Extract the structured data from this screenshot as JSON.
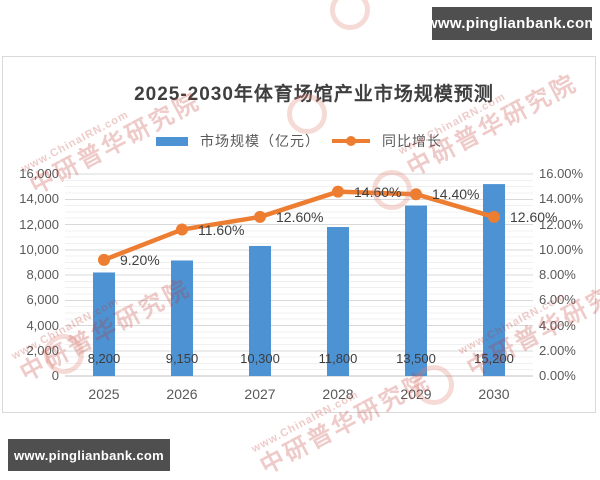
{
  "page": {
    "top_badge": "www.pinglianbank.com",
    "bottom_badge": "www.pinglianbank.com"
  },
  "watermark": {
    "url_text": "www.ChinaIRN.com",
    "stamp_text": "中研普华研究院"
  },
  "chart_data": {
    "type": "combo",
    "title": "2025-2030年体育场馆产业市场规模预测",
    "categories": [
      "2025",
      "2026",
      "2027",
      "2028",
      "2029",
      "2030"
    ],
    "series": [
      {
        "name": "市场规模（亿元）",
        "type": "bar",
        "axis": "left",
        "color": "#4D92D3",
        "values": [
          8200,
          9150,
          10300,
          11800,
          13500,
          15200
        ],
        "labels": [
          "8,200",
          "9,150",
          "10,300",
          "11,800",
          "13,500",
          "15,200"
        ]
      },
      {
        "name": "同比增长",
        "type": "line",
        "axis": "right",
        "color": "#ED7D31",
        "values": [
          9.2,
          11.6,
          12.6,
          14.6,
          14.4,
          12.6
        ],
        "labels": [
          "9.20%",
          "11.60%",
          "12.60%",
          "14.60%",
          "14.40%",
          "12.60%"
        ]
      }
    ],
    "left_axis": {
      "min": 0,
      "max": 16000,
      "major_step": 2000,
      "minor_step": 500,
      "tick_labels": [
        "0",
        "2,000",
        "4,000",
        "6,000",
        "8,000",
        "10,000",
        "12,000",
        "14,000",
        "16,000"
      ]
    },
    "right_axis": {
      "min": 0,
      "max": 16,
      "major_step": 2,
      "tick_labels": [
        "0.00%",
        "2.00%",
        "4.00%",
        "6.00%",
        "8.00%",
        "10.00%",
        "12.00%",
        "14.00%",
        "16.00%"
      ]
    },
    "grid": true,
    "legend_position": "top",
    "colors": {
      "grid_major": "#d9d9d9",
      "grid_minor": "#f0f0f0",
      "axis_line": "#c0c0c0",
      "tick_text": "#595959",
      "title_text": "#3f3f3f"
    }
  }
}
